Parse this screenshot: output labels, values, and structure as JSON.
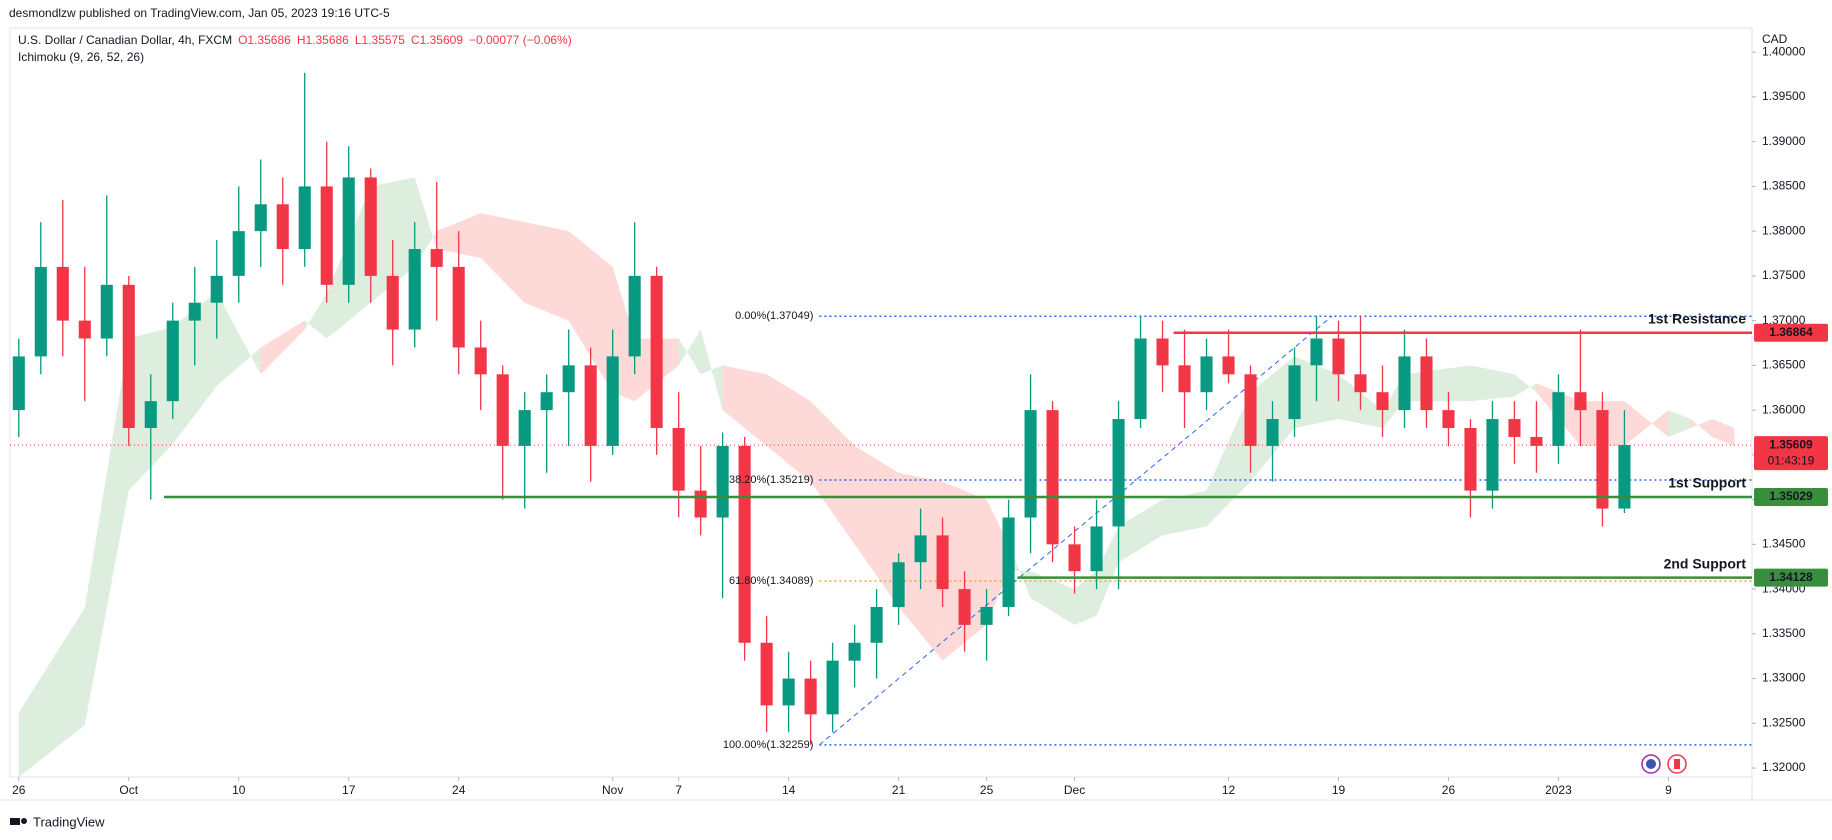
{
  "header": {
    "published": "desmondlzw published on TradingView.com, Jan 05, 2023 19:16 UTC-5",
    "symbol": "U.S. Dollar / Canadian Dollar, 4h, FXCM",
    "ohlc": [
      "O1.35686",
      "H1.35686",
      "L1.35575",
      "C1.35609",
      "−0.00077 (−0.06%)"
    ],
    "indicator": "Ichimoku (9, 26, 52, 26)",
    "currency": "CAD"
  },
  "footer": {
    "brand": "TradingView"
  },
  "chart_data": {
    "type": "candlestick",
    "xlim": [
      -0.4,
      78.8
    ],
    "xticks": [
      {
        "value": 0,
        "label": "26"
      },
      {
        "value": 5,
        "label": "Oct"
      },
      {
        "value": 10,
        "label": "10"
      },
      {
        "value": 15,
        "label": "17"
      },
      {
        "value": 20,
        "label": "24"
      },
      {
        "value": 27,
        "label": "Nov"
      },
      {
        "value": 30,
        "label": "7"
      },
      {
        "value": 35,
        "label": "14"
      },
      {
        "value": 40,
        "label": "21"
      },
      {
        "value": 44,
        "label": "25"
      },
      {
        "value": 48,
        "label": "Dec"
      },
      {
        "value": 55,
        "label": "12"
      },
      {
        "value": 60,
        "label": "19"
      },
      {
        "value": 65,
        "label": "26"
      },
      {
        "value": 70,
        "label": "2023"
      },
      {
        "value": 75,
        "label": "9"
      }
    ],
    "ylim": [
      1.319,
      1.4027
    ],
    "yticks": [
      {
        "value": 1.32,
        "label": "1.32000"
      },
      {
        "value": 1.325,
        "label": "1.32500"
      },
      {
        "value": 1.33,
        "label": "1.33000"
      },
      {
        "value": 1.335,
        "label": "1.33500"
      },
      {
        "value": 1.34,
        "label": "1.34000"
      },
      {
        "value": 1.345,
        "label": "1.34500"
      },
      {
        "value": 1.35,
        "label": "1.35000"
      },
      {
        "value": 1.355,
        "label": "1.35500"
      },
      {
        "value": 1.36,
        "label": "1.36000"
      },
      {
        "value": 1.365,
        "label": "1.36500"
      },
      {
        "value": 1.37,
        "label": "1.37000"
      },
      {
        "value": 1.375,
        "label": "1.37500"
      },
      {
        "value": 1.38,
        "label": "1.38000"
      },
      {
        "value": 1.385,
        "label": "1.38500"
      },
      {
        "value": 1.39,
        "label": "1.39000"
      },
      {
        "value": 1.395,
        "label": "1.39500"
      },
      {
        "value": 1.4,
        "label": "1.40000"
      }
    ],
    "grid": false,
    "up_color": "#089981",
    "down_color": "#f23645",
    "candles": {
      "x": [
        0,
        1,
        2,
        3,
        4,
        5,
        6,
        7,
        8,
        9,
        10,
        11,
        12,
        13,
        14,
        15,
        16,
        17,
        18,
        19,
        20,
        21,
        22,
        23,
        24,
        25,
        26,
        27,
        28,
        29,
        30,
        31,
        32,
        33,
        34,
        35,
        36,
        37,
        38,
        39,
        40,
        41,
        42,
        43,
        44,
        45,
        46,
        47,
        48,
        49,
        50,
        51,
        52,
        53,
        54,
        55,
        56,
        57,
        58,
        59,
        60,
        61,
        62,
        63,
        64,
        65,
        66,
        67,
        68,
        69,
        70,
        71,
        72,
        73
      ],
      "open": [
        1.36,
        1.366,
        1.376,
        1.37,
        1.368,
        1.374,
        1.358,
        1.361,
        1.37,
        1.372,
        1.375,
        1.38,
        1.383,
        1.378,
        1.385,
        1.374,
        1.386,
        1.375,
        1.369,
        1.378,
        1.376,
        1.367,
        1.364,
        1.356,
        1.36,
        1.362,
        1.365,
        1.356,
        1.366,
        1.375,
        1.358,
        1.351,
        1.348,
        1.356,
        1.334,
        1.327,
        1.33,
        1.326,
        1.332,
        1.334,
        1.338,
        1.343,
        1.346,
        1.34,
        1.336,
        1.338,
        1.348,
        1.36,
        1.345,
        1.342,
        1.347,
        1.359,
        1.368,
        1.365,
        1.362,
        1.366,
        1.364,
        1.356,
        1.359,
        1.365,
        1.368,
        1.364,
        1.362,
        1.36,
        1.366,
        1.36,
        1.358,
        1.351,
        1.359,
        1.357,
        1.356,
        1.362,
        1.36,
        1.349
      ],
      "high": [
        1.368,
        1.381,
        1.3835,
        1.376,
        1.384,
        1.375,
        1.364,
        1.372,
        1.376,
        1.379,
        1.385,
        1.388,
        1.386,
        1.3977,
        1.39,
        1.3895,
        1.387,
        1.379,
        1.381,
        1.3855,
        1.38,
        1.37,
        1.365,
        1.362,
        1.364,
        1.369,
        1.367,
        1.369,
        1.381,
        1.376,
        1.362,
        1.356,
        1.3575,
        1.357,
        1.337,
        1.333,
        1.332,
        1.334,
        1.336,
        1.34,
        1.344,
        1.349,
        1.348,
        1.342,
        1.34,
        1.35,
        1.364,
        1.361,
        1.347,
        1.35,
        1.361,
        1.3705,
        1.37,
        1.369,
        1.368,
        1.369,
        1.365,
        1.361,
        1.367,
        1.3705,
        1.37,
        1.3705,
        1.365,
        1.369,
        1.368,
        1.362,
        1.359,
        1.361,
        1.361,
        1.361,
        1.364,
        1.369,
        1.362,
        1.36
      ],
      "low": [
        1.357,
        1.364,
        1.366,
        1.361,
        1.366,
        1.356,
        1.35,
        1.359,
        1.365,
        1.368,
        1.372,
        1.376,
        1.374,
        1.376,
        1.372,
        1.372,
        1.372,
        1.365,
        1.367,
        1.37,
        1.364,
        1.36,
        1.35,
        1.349,
        1.353,
        1.356,
        1.352,
        1.355,
        1.364,
        1.355,
        1.348,
        1.346,
        1.339,
        1.332,
        1.324,
        1.324,
        1.3226,
        1.324,
        1.329,
        1.33,
        1.336,
        1.34,
        1.338,
        1.333,
        1.332,
        1.337,
        1.344,
        1.343,
        1.3395,
        1.34,
        1.34,
        1.358,
        1.362,
        1.358,
        1.36,
        1.363,
        1.353,
        1.352,
        1.357,
        1.361,
        1.361,
        1.36,
        1.357,
        1.358,
        1.358,
        1.356,
        1.348,
        1.349,
        1.354,
        1.353,
        1.354,
        1.356,
        1.347,
        1.3485
      ],
      "close": [
        1.366,
        1.376,
        1.37,
        1.368,
        1.374,
        1.358,
        1.361,
        1.37,
        1.372,
        1.375,
        1.38,
        1.383,
        1.378,
        1.385,
        1.374,
        1.386,
        1.375,
        1.369,
        1.378,
        1.376,
        1.367,
        1.364,
        1.356,
        1.36,
        1.362,
        1.365,
        1.356,
        1.366,
        1.375,
        1.358,
        1.351,
        1.348,
        1.356,
        1.334,
        1.327,
        1.33,
        1.326,
        1.332,
        1.334,
        1.338,
        1.343,
        1.346,
        1.34,
        1.336,
        1.338,
        1.348,
        1.36,
        1.345,
        1.342,
        1.347,
        1.359,
        1.368,
        1.365,
        1.362,
        1.366,
        1.364,
        1.356,
        1.359,
        1.365,
        1.368,
        1.364,
        1.362,
        1.36,
        1.366,
        1.36,
        1.358,
        1.351,
        1.359,
        1.357,
        1.356,
        1.362,
        1.36,
        1.349,
        1.35609
      ]
    },
    "cloud": {
      "up_color": "rgba(67,160,71,0.18)",
      "down_color": "rgba(244,67,54,0.2)",
      "x": [
        0,
        3,
        5,
        7,
        9,
        11,
        13,
        14,
        16,
        18,
        19,
        21,
        23,
        25,
        27,
        28,
        30,
        31,
        32,
        34,
        36,
        38,
        40,
        42,
        44,
        45,
        46,
        48,
        49,
        50,
        52,
        54,
        56,
        58,
        60,
        62,
        63,
        66,
        68,
        69,
        71,
        73,
        75,
        76,
        77,
        78
      ],
      "span_a": [
        1.3262,
        1.3379,
        1.368,
        1.3693,
        1.3732,
        1.364,
        1.369,
        1.373,
        1.385,
        1.386,
        1.378,
        1.377,
        1.372,
        1.37,
        1.362,
        1.361,
        1.365,
        1.369,
        1.36,
        1.356,
        1.352,
        1.345,
        1.338,
        1.332,
        1.336,
        1.342,
        1.342,
        1.34,
        1.342,
        1.347,
        1.35,
        1.351,
        1.362,
        1.366,
        1.364,
        1.36,
        1.364,
        1.365,
        1.364,
        1.362,
        1.356,
        1.356,
        1.36,
        1.359,
        1.357,
        1.356
      ],
      "span_b": [
        1.319,
        1.3248,
        1.351,
        1.3562,
        1.3627,
        1.367,
        1.37,
        1.368,
        1.372,
        1.376,
        1.38,
        1.382,
        1.381,
        1.38,
        1.376,
        1.368,
        1.368,
        1.364,
        1.365,
        1.364,
        1.361,
        1.356,
        1.353,
        1.352,
        1.35,
        1.345,
        1.339,
        1.336,
        1.337,
        1.343,
        1.346,
        1.347,
        1.352,
        1.358,
        1.359,
        1.358,
        1.361,
        1.361,
        1.3615,
        1.363,
        1.361,
        1.361,
        1.357,
        1.358,
        1.359,
        1.358
      ]
    },
    "levels": [
      {
        "name": "1st Resistance",
        "value": 1.36864,
        "label": "1.36864",
        "color": "#f23645",
        "x_start": 52.5
      },
      {
        "name": "1st Support",
        "value": 1.35029,
        "label": "1.35029",
        "color": "#388e3c",
        "x_start": 6.6
      },
      {
        "name": "2nd Support",
        "value": 1.34128,
        "label": "1.34128",
        "color": "#388e3c",
        "x_start": 45.4
      }
    ],
    "fib_x_start": 36.4,
    "fib_levels": [
      {
        "value": 1.37049,
        "label": "0.00%(1.37049)",
        "color": "#2962ff"
      },
      {
        "value": 1.35219,
        "label": "38.20%(1.35219)",
        "color": "#2962ff"
      },
      {
        "value": 1.34089,
        "label": "61.80%(1.34089)",
        "color": "#f5a623"
      },
      {
        "value": 1.32259,
        "label": "100.00%(1.32259)",
        "color": "#2962ff"
      }
    ],
    "trend_line": {
      "x": [
        36.4,
        59.7
      ],
      "y": [
        1.32259,
        1.37049
      ],
      "color": "#2962ff"
    },
    "last_price": {
      "value": 1.35609,
      "label": "1.35609",
      "countdown": "01:43:19",
      "color": "#f23645"
    }
  }
}
